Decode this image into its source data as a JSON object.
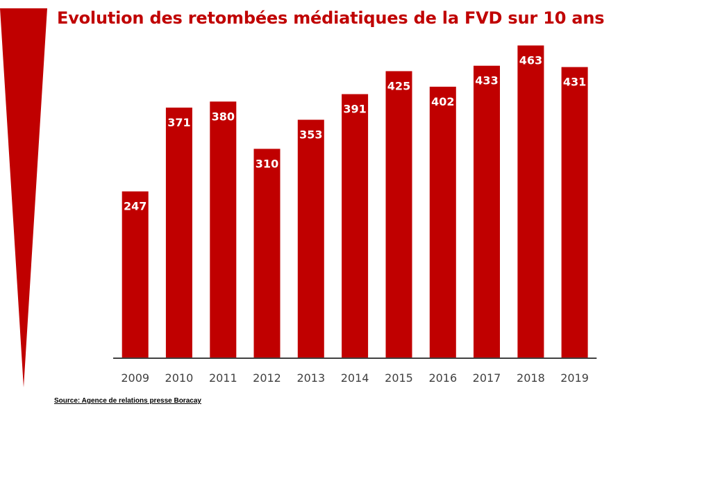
{
  "colors": {
    "accent": "#c00000",
    "axis": "#404040",
    "bar_label": "#ffffff"
  },
  "source_note": "Source: Agence de relations presse Boracay",
  "chart_data": {
    "type": "bar",
    "title": "Evolution des retombées médiatiques de la FVD sur 10 ans",
    "categories": [
      "2009",
      "2010",
      "2011",
      "2012",
      "2013",
      "2014",
      "2015",
      "2016",
      "2017",
      "2018",
      "2019"
    ],
    "values": [
      247,
      371,
      380,
      310,
      353,
      391,
      425,
      402,
      433,
      463,
      431
    ],
    "xlabel": "",
    "ylabel": "",
    "ylim": [
      0,
      480
    ],
    "grid": false,
    "legend": "none",
    "data_labels": true
  }
}
